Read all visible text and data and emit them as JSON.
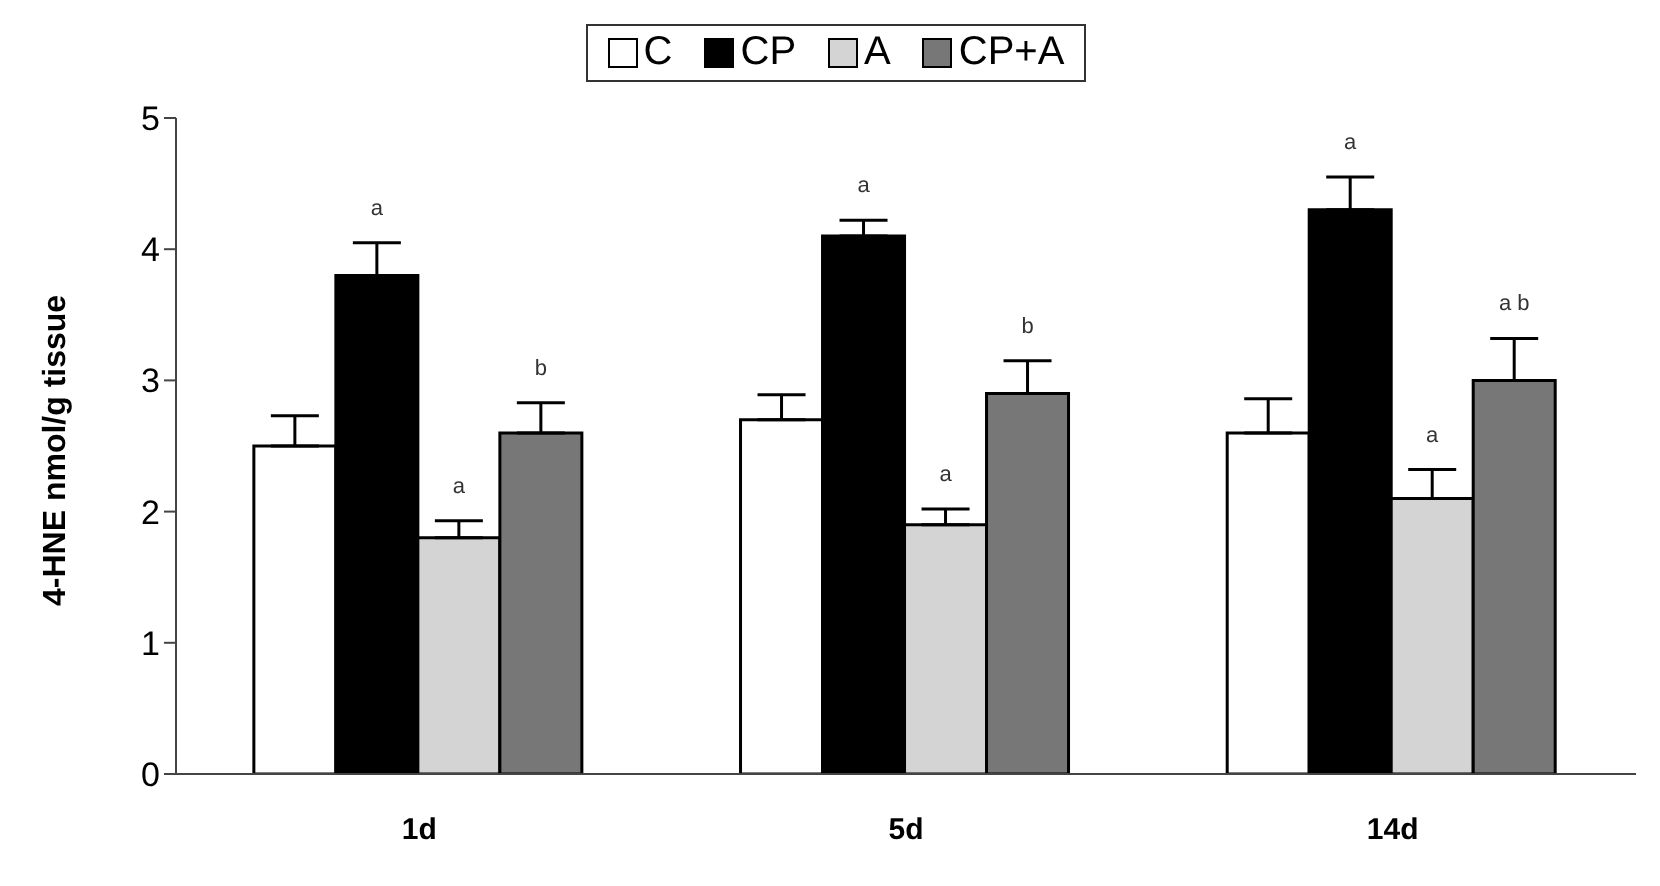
{
  "chart_data": {
    "type": "bar",
    "ylabel": "4-HNE nmol/g tissue",
    "categories": [
      "1d",
      "5d",
      "14d"
    ],
    "series": [
      {
        "name": "C",
        "color": "#ffffff",
        "values": [
          2.5,
          2.7,
          2.6
        ],
        "errors": [
          [
            2.5,
            2.73
          ],
          [
            2.7,
            2.89
          ],
          [
            2.6,
            2.86
          ]
        ]
      },
      {
        "name": "CP",
        "color": "#000000",
        "values": [
          3.8,
          4.1,
          4.3
        ],
        "errors": [
          [
            3.8,
            4.05
          ],
          [
            4.1,
            4.22
          ],
          [
            4.3,
            4.55
          ]
        ],
        "value_labels": [
          "a",
          "a",
          "a"
        ]
      },
      {
        "name": "A",
        "color": "#d4d4d4",
        "values": [
          1.8,
          1.9,
          2.1
        ],
        "errors": [
          [
            1.8,
            1.93
          ],
          [
            1.9,
            2.02
          ],
          [
            2.1,
            2.32
          ]
        ],
        "value_labels": [
          "a",
          "a",
          "a"
        ]
      },
      {
        "name": "CP+A",
        "color": "#777777",
        "values": [
          2.6,
          2.9,
          3.0
        ],
        "errors": [
          [
            2.6,
            2.83
          ],
          [
            2.9,
            3.15
          ],
          [
            3.0,
            3.32
          ]
        ],
        "value_labels": [
          "b",
          "b",
          "a b"
        ]
      }
    ],
    "ylim": [
      0,
      5
    ],
    "yticks": [
      0,
      1,
      2,
      3,
      4,
      5
    ],
    "grid": false,
    "legend": "top"
  }
}
